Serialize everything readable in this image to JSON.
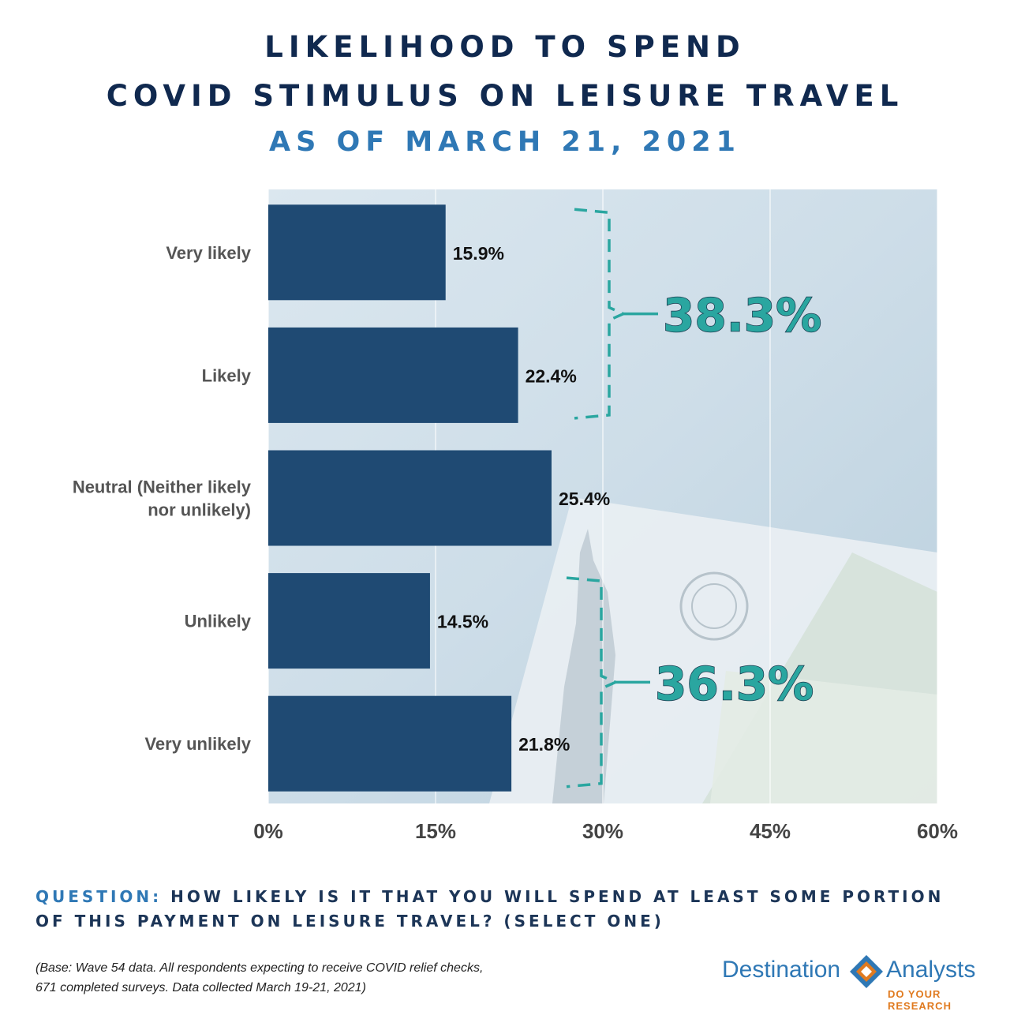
{
  "title": {
    "line1": "LIKELIHOOD TO SPEND",
    "line2": "COVID STIMULUS ON LEISURE TRAVEL",
    "line3": "AS OF MARCH 21, 2021"
  },
  "colors": {
    "title_dark": "#10294f",
    "title_accent": "#2f78b5",
    "bar": "#1f4a73",
    "bracket": "#2aa6a0",
    "brand_orange": "#e07a1f"
  },
  "chart_data": {
    "type": "bar",
    "orientation": "horizontal",
    "categories": [
      "Very likely",
      "Likely",
      "Neutral (Neither likely nor unlikely)",
      "Unlikely",
      "Very unlikely"
    ],
    "category_lines": [
      [
        "Very likely"
      ],
      [
        "Likely"
      ],
      [
        "Neutral (Neither likely",
        "nor unlikely)"
      ],
      [
        "Unlikely"
      ],
      [
        "Very unlikely"
      ]
    ],
    "values": [
      15.9,
      22.4,
      25.4,
      14.5,
      21.8
    ],
    "value_labels": [
      "15.9%",
      "22.4%",
      "25.4%",
      "14.5%",
      "21.8%"
    ],
    "xlim": [
      0,
      60
    ],
    "xticks": [
      0,
      15,
      30,
      45,
      60
    ],
    "xtick_labels": [
      "0%",
      "15%",
      "30%",
      "45%",
      "60%"
    ],
    "grid": true,
    "annotations": [
      {
        "group": [
          "Very likely",
          "Likely"
        ],
        "value": 38.3,
        "label": "38.3%"
      },
      {
        "group": [
          "Unlikely",
          "Very unlikely"
        ],
        "value": 36.3,
        "label": "36.3%"
      }
    ]
  },
  "question": {
    "label": "QUESTION:",
    "text": "HOW LIKELY IS IT THAT YOU WILL SPEND AT LEAST SOME PORTION OF THIS PAYMENT ON LEISURE TRAVEL? (SELECT ONE)"
  },
  "base_note": {
    "line1": "(Base: Wave 54 data. All respondents expecting to receive COVID relief checks,",
    "line2": "671 completed surveys. Data collected March 19-21, 2021)"
  },
  "logo": {
    "left": "Destination",
    "right": "Analysts",
    "tagline": "DO YOUR RESEARCH"
  }
}
